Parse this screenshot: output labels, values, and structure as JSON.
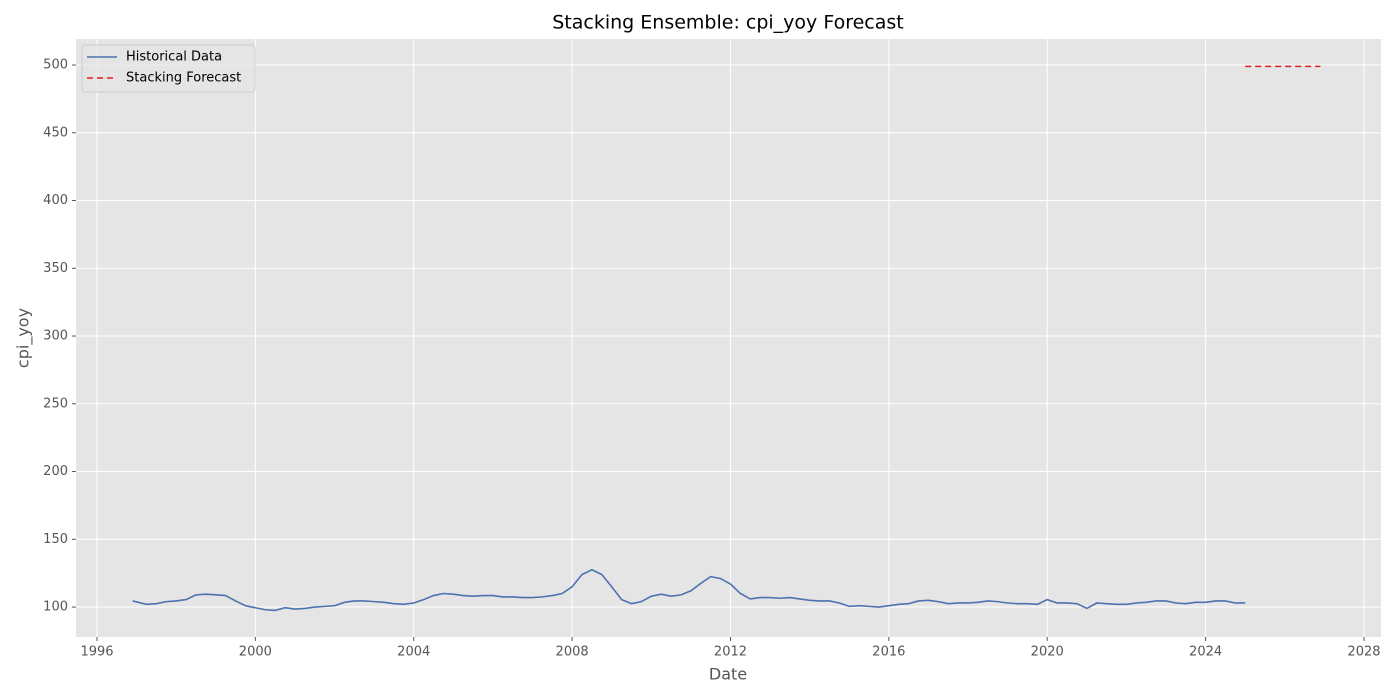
{
  "chart_data": {
    "type": "line",
    "title": "Stacking Ensemble: cpi_yoy Forecast",
    "x_label": "Date",
    "y_label": "cpi_yoy",
    "xlim": [
      1995.47,
      2028.43
    ],
    "ylim": [
      77.9,
      519.2
    ],
    "xticks": [
      1996,
      2000,
      2004,
      2008,
      2012,
      2016,
      2020,
      2024,
      2028
    ],
    "yticks": [
      100,
      150,
      200,
      250,
      300,
      350,
      400,
      450,
      500
    ],
    "grid": true,
    "legend": "upper left",
    "series": [
      {
        "name": "Historical Data",
        "color": "#4c72b0",
        "dash": "solid",
        "x": [
          1996.9,
          1997.25,
          1997.5,
          1997.75,
          1998.0,
          1998.25,
          1998.5,
          1998.75,
          1999.0,
          1999.25,
          1999.5,
          1999.75,
          2000.0,
          2000.25,
          2000.5,
          2000.75,
          2001.0,
          2001.25,
          2001.5,
          2001.75,
          2002.0,
          2002.25,
          2002.5,
          2002.75,
          2003.0,
          2003.25,
          2003.5,
          2003.75,
          2004.0,
          2004.25,
          2004.5,
          2004.75,
          2005.0,
          2005.25,
          2005.5,
          2005.75,
          2006.0,
          2006.25,
          2006.5,
          2006.75,
          2007.0,
          2007.25,
          2007.5,
          2007.75,
          2008.0,
          2008.25,
          2008.5,
          2008.75,
          2009.0,
          2009.25,
          2009.5,
          2009.75,
          2010.0,
          2010.25,
          2010.5,
          2010.75,
          2011.0,
          2011.25,
          2011.5,
          2011.75,
          2012.0,
          2012.25,
          2012.5,
          2012.75,
          2013.0,
          2013.25,
          2013.5,
          2013.75,
          2014.0,
          2014.25,
          2014.5,
          2014.75,
          2015.0,
          2015.25,
          2015.5,
          2015.75,
          2016.0,
          2016.25,
          2016.5,
          2016.75,
          2017.0,
          2017.25,
          2017.5,
          2017.75,
          2018.0,
          2018.25,
          2018.5,
          2018.75,
          2019.0,
          2019.25,
          2019.5,
          2019.75,
          2020.0,
          2020.25,
          2020.5,
          2020.75,
          2021.0,
          2021.25,
          2021.5,
          2021.75,
          2022.0,
          2022.25,
          2022.5,
          2022.75,
          2023.0,
          2023.25,
          2023.5,
          2023.75,
          2024.0,
          2024.25,
          2024.5,
          2024.75,
          2025.0
        ],
        "values": [
          104.5,
          102,
          102.5,
          104,
          104.5,
          105.5,
          109,
          109.5,
          109,
          108.5,
          104.5,
          101,
          99.5,
          98,
          97.5,
          99.5,
          98.5,
          99,
          100,
          100.5,
          101,
          103.5,
          104.5,
          104.5,
          104,
          103.5,
          102.5,
          102,
          103,
          105.5,
          108.5,
          110,
          109.5,
          108.5,
          108,
          108.5,
          108.5,
          107.5,
          107.5,
          107,
          107,
          107.5,
          108.5,
          110,
          115,
          124,
          127.5,
          124,
          115,
          105.5,
          102.5,
          104,
          108,
          109.5,
          108,
          109,
          112,
          117.5,
          122.5,
          121,
          117,
          110,
          106,
          107,
          107,
          106.5,
          107,
          106,
          105,
          104.5,
          104.5,
          103,
          100.5,
          101,
          100.5,
          100,
          101,
          102,
          102.5,
          104.5,
          105,
          104,
          102.5,
          103,
          103,
          103.5,
          104.5,
          104,
          103,
          102.5,
          102.5,
          102,
          105.5,
          103,
          103,
          102.5,
          99,
          103,
          102.5,
          102,
          102,
          103,
          103.5,
          104.5,
          104.5,
          103,
          102.5,
          103.5,
          103.5,
          104.5,
          104.5,
          103,
          103
        ]
      },
      {
        "name": "Stacking Forecast",
        "color": "#e41a1c",
        "dash": "dashed",
        "x": [
          2025.0,
          2025.5,
          2026.0,
          2026.5,
          2026.9
        ],
        "values": [
          499,
          499,
          499,
          499,
          499
        ]
      }
    ]
  }
}
